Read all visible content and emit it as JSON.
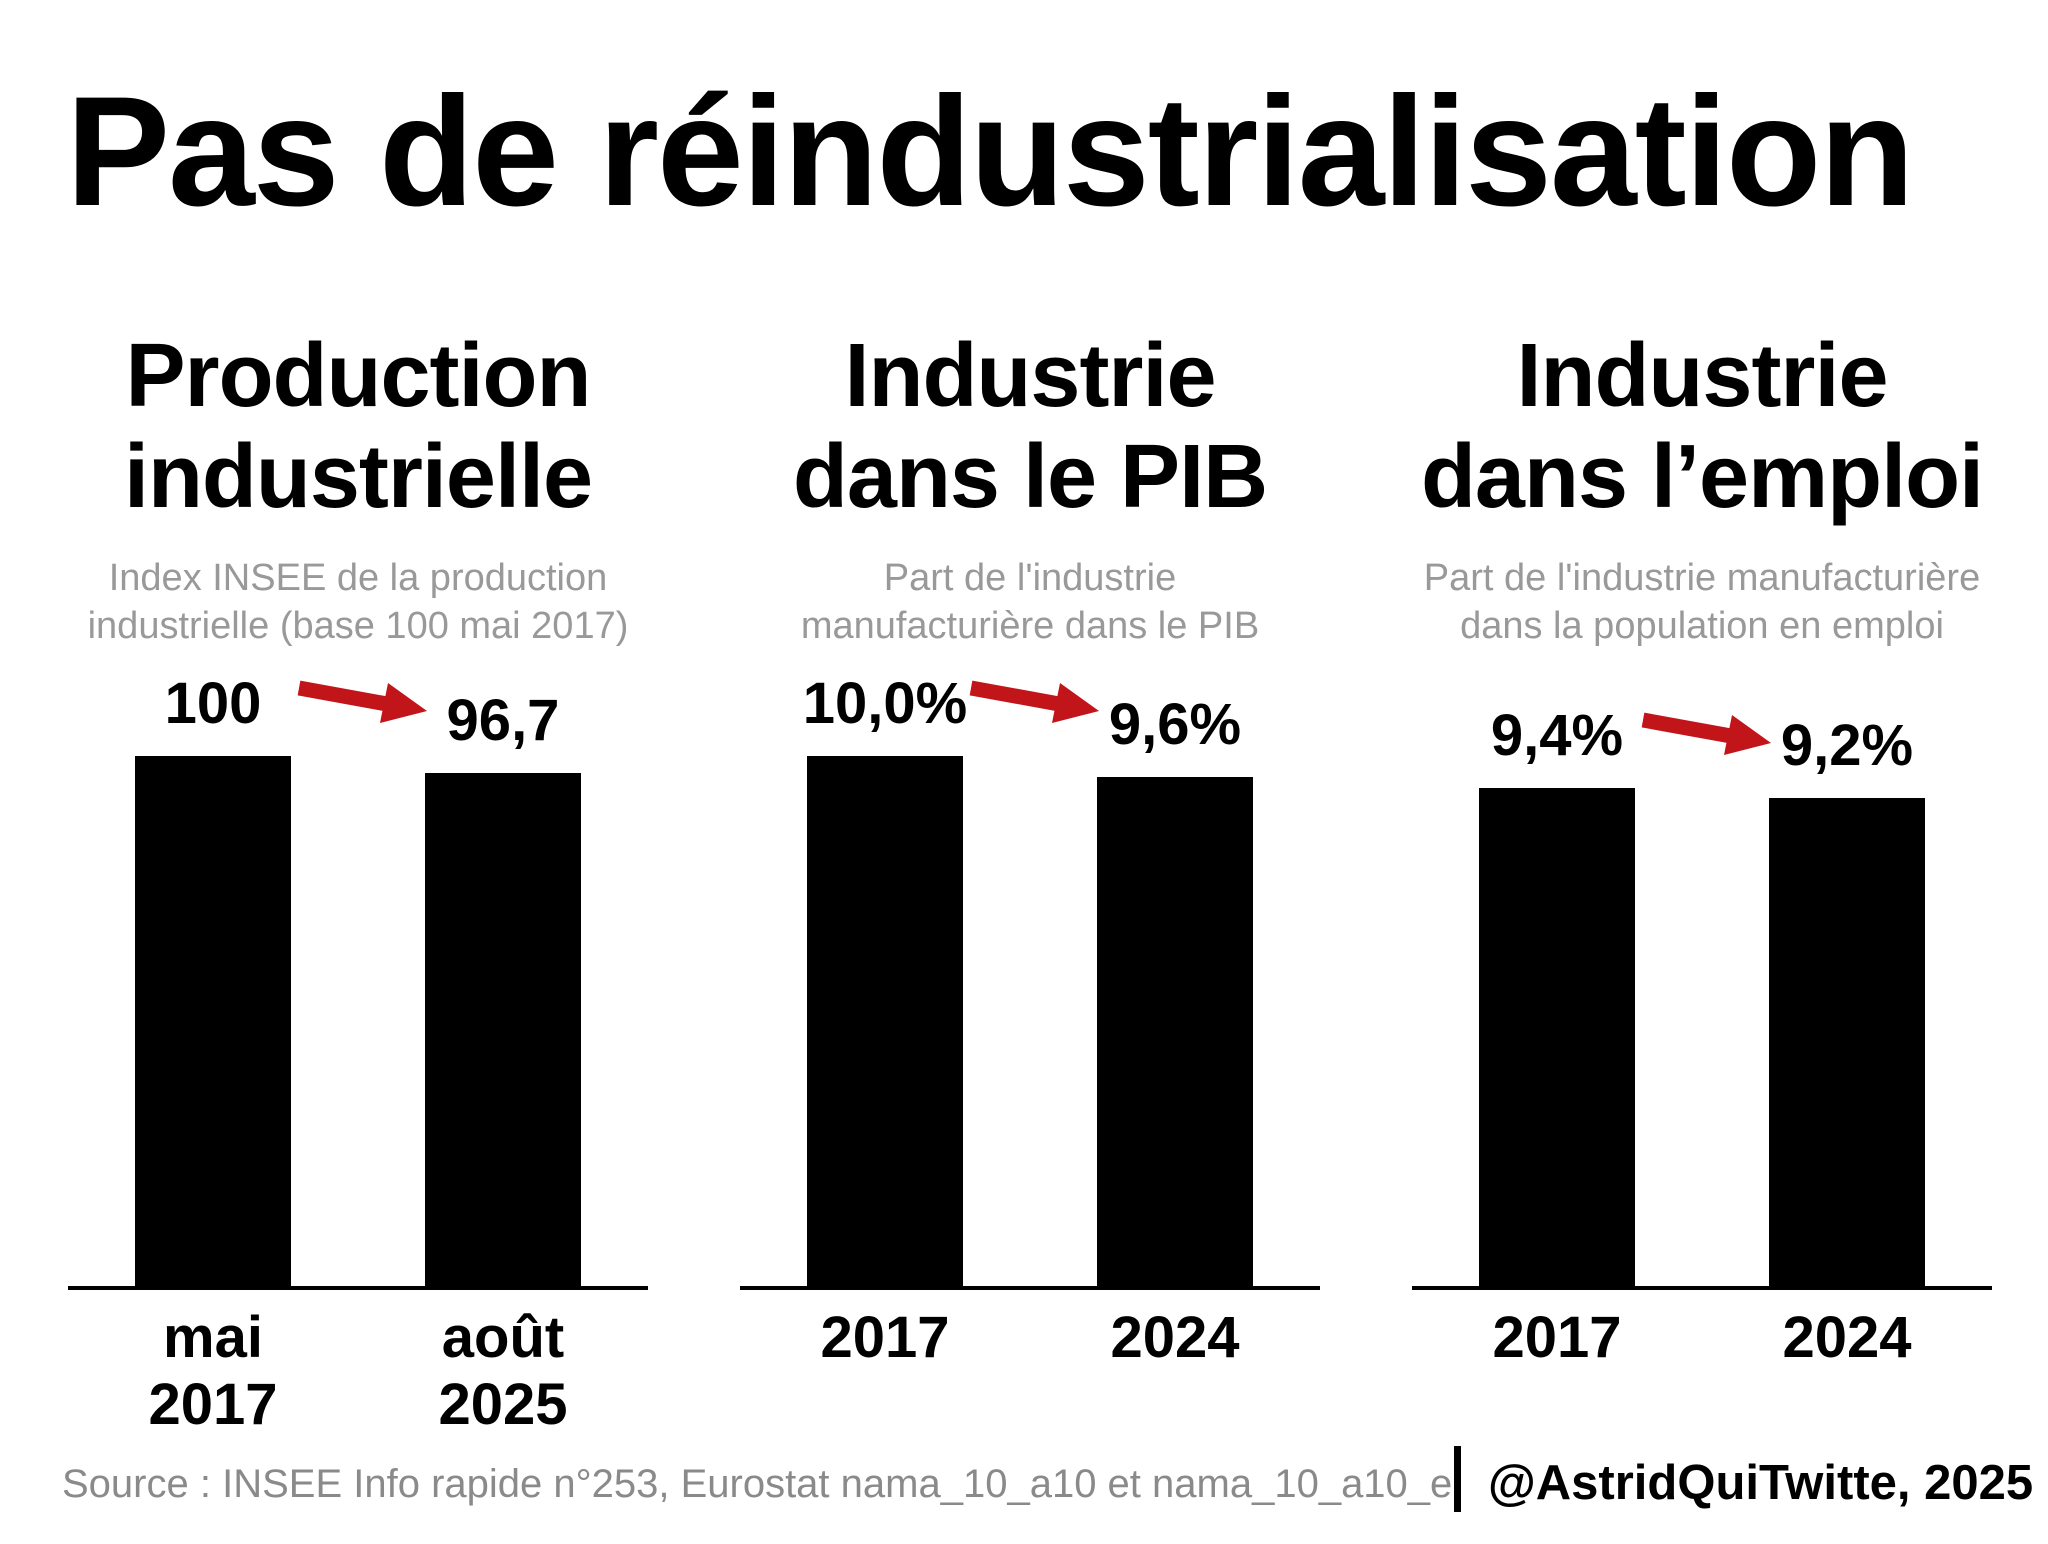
{
  "title": "Pas de réindustrialisation",
  "colors": {
    "text_black": "#000000",
    "subtitle_gray": "#999999",
    "source_gray": "#8a8a8a",
    "bar_black": "#000000",
    "arrow_red": "#c2151a"
  },
  "chart_data": [
    {
      "type": "bar",
      "title": "Production\nindustrielle",
      "subtitle": "Index INSEE de la production\nindustrielle (base 100 mai 2017)",
      "categories": [
        "mai\n2017",
        "août\n2025"
      ],
      "values": [
        100,
        96.7
      ],
      "value_labels": [
        "100",
        "96,7"
      ],
      "ylim": [
        0,
        100
      ],
      "grid": false,
      "annotation": "red arrow pointing down-right between value labels"
    },
    {
      "type": "bar",
      "title": "Industrie\ndans le PIB",
      "subtitle": "Part de l'industrie\nmanufacturière dans le PIB",
      "categories": [
        "2017",
        "2024"
      ],
      "values": [
        10.0,
        9.6
      ],
      "value_labels": [
        "10,0%",
        "9,6%"
      ],
      "ylim": [
        0,
        10
      ],
      "grid": false,
      "annotation": "red arrow pointing down-right between value labels"
    },
    {
      "type": "bar",
      "title": "Industrie\ndans l’emploi",
      "subtitle": "Part de l'industrie manufacturière\ndans la population en emploi",
      "categories": [
        "2017",
        "2024"
      ],
      "values": [
        9.4,
        9.2
      ],
      "value_labels": [
        "9,4%",
        "9,2%"
      ],
      "ylim": [
        0,
        10
      ],
      "grid": false,
      "annotation": "red arrow pointing down-right between value labels"
    }
  ],
  "footer": {
    "source": "Source : INSEE Info rapide n°253, Eurostat nama_10_a10 et nama_10_a10_e",
    "separator": "|",
    "credit": "@AstridQuiTwitte, 2025"
  }
}
